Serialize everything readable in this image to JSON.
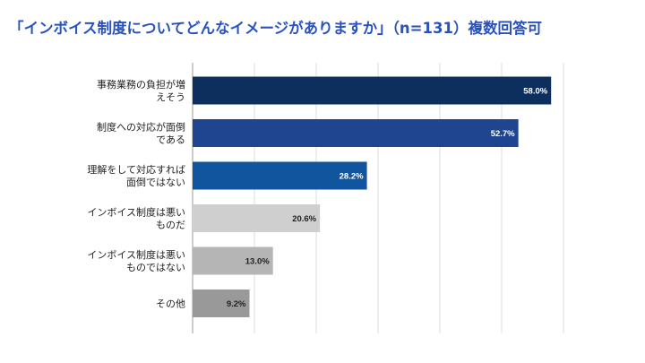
{
  "chart_data": {
    "type": "bar",
    "orientation": "horizontal",
    "title": "「インボイス制度についてどんなイメージがありますか」（n=131）複数回答可",
    "categories": [
      [
        "事務業務の負担が増",
        "えそう"
      ],
      [
        "制度への対応が面倒",
        "である"
      ],
      [
        "理解をして対応すれば",
        "面倒ではない"
      ],
      [
        "インボイス制度は悪い",
        "ものだ"
      ],
      [
        "インボイス制度は悪い",
        "ものではない"
      ],
      [
        "その他"
      ]
    ],
    "values": [
      58.0,
      52.7,
      28.2,
      20.6,
      13.0,
      9.2
    ],
    "value_labels": [
      "58.0%",
      "52.7%",
      "28.2%",
      "20.6%",
      "13.0%",
      "9.2%"
    ],
    "colors": [
      "#0d2f5e",
      "#1f4590",
      "#11559f",
      "#cfcfcf",
      "#b5b5b5",
      "#999999"
    ],
    "label_colors": [
      "#ffffff",
      "#ffffff",
      "#ffffff",
      "#222222",
      "#222222",
      "#222222"
    ],
    "xlim": [
      0,
      60
    ],
    "grid": true,
    "gridlines": [
      0,
      10,
      20,
      30,
      40,
      50,
      60
    ]
  }
}
